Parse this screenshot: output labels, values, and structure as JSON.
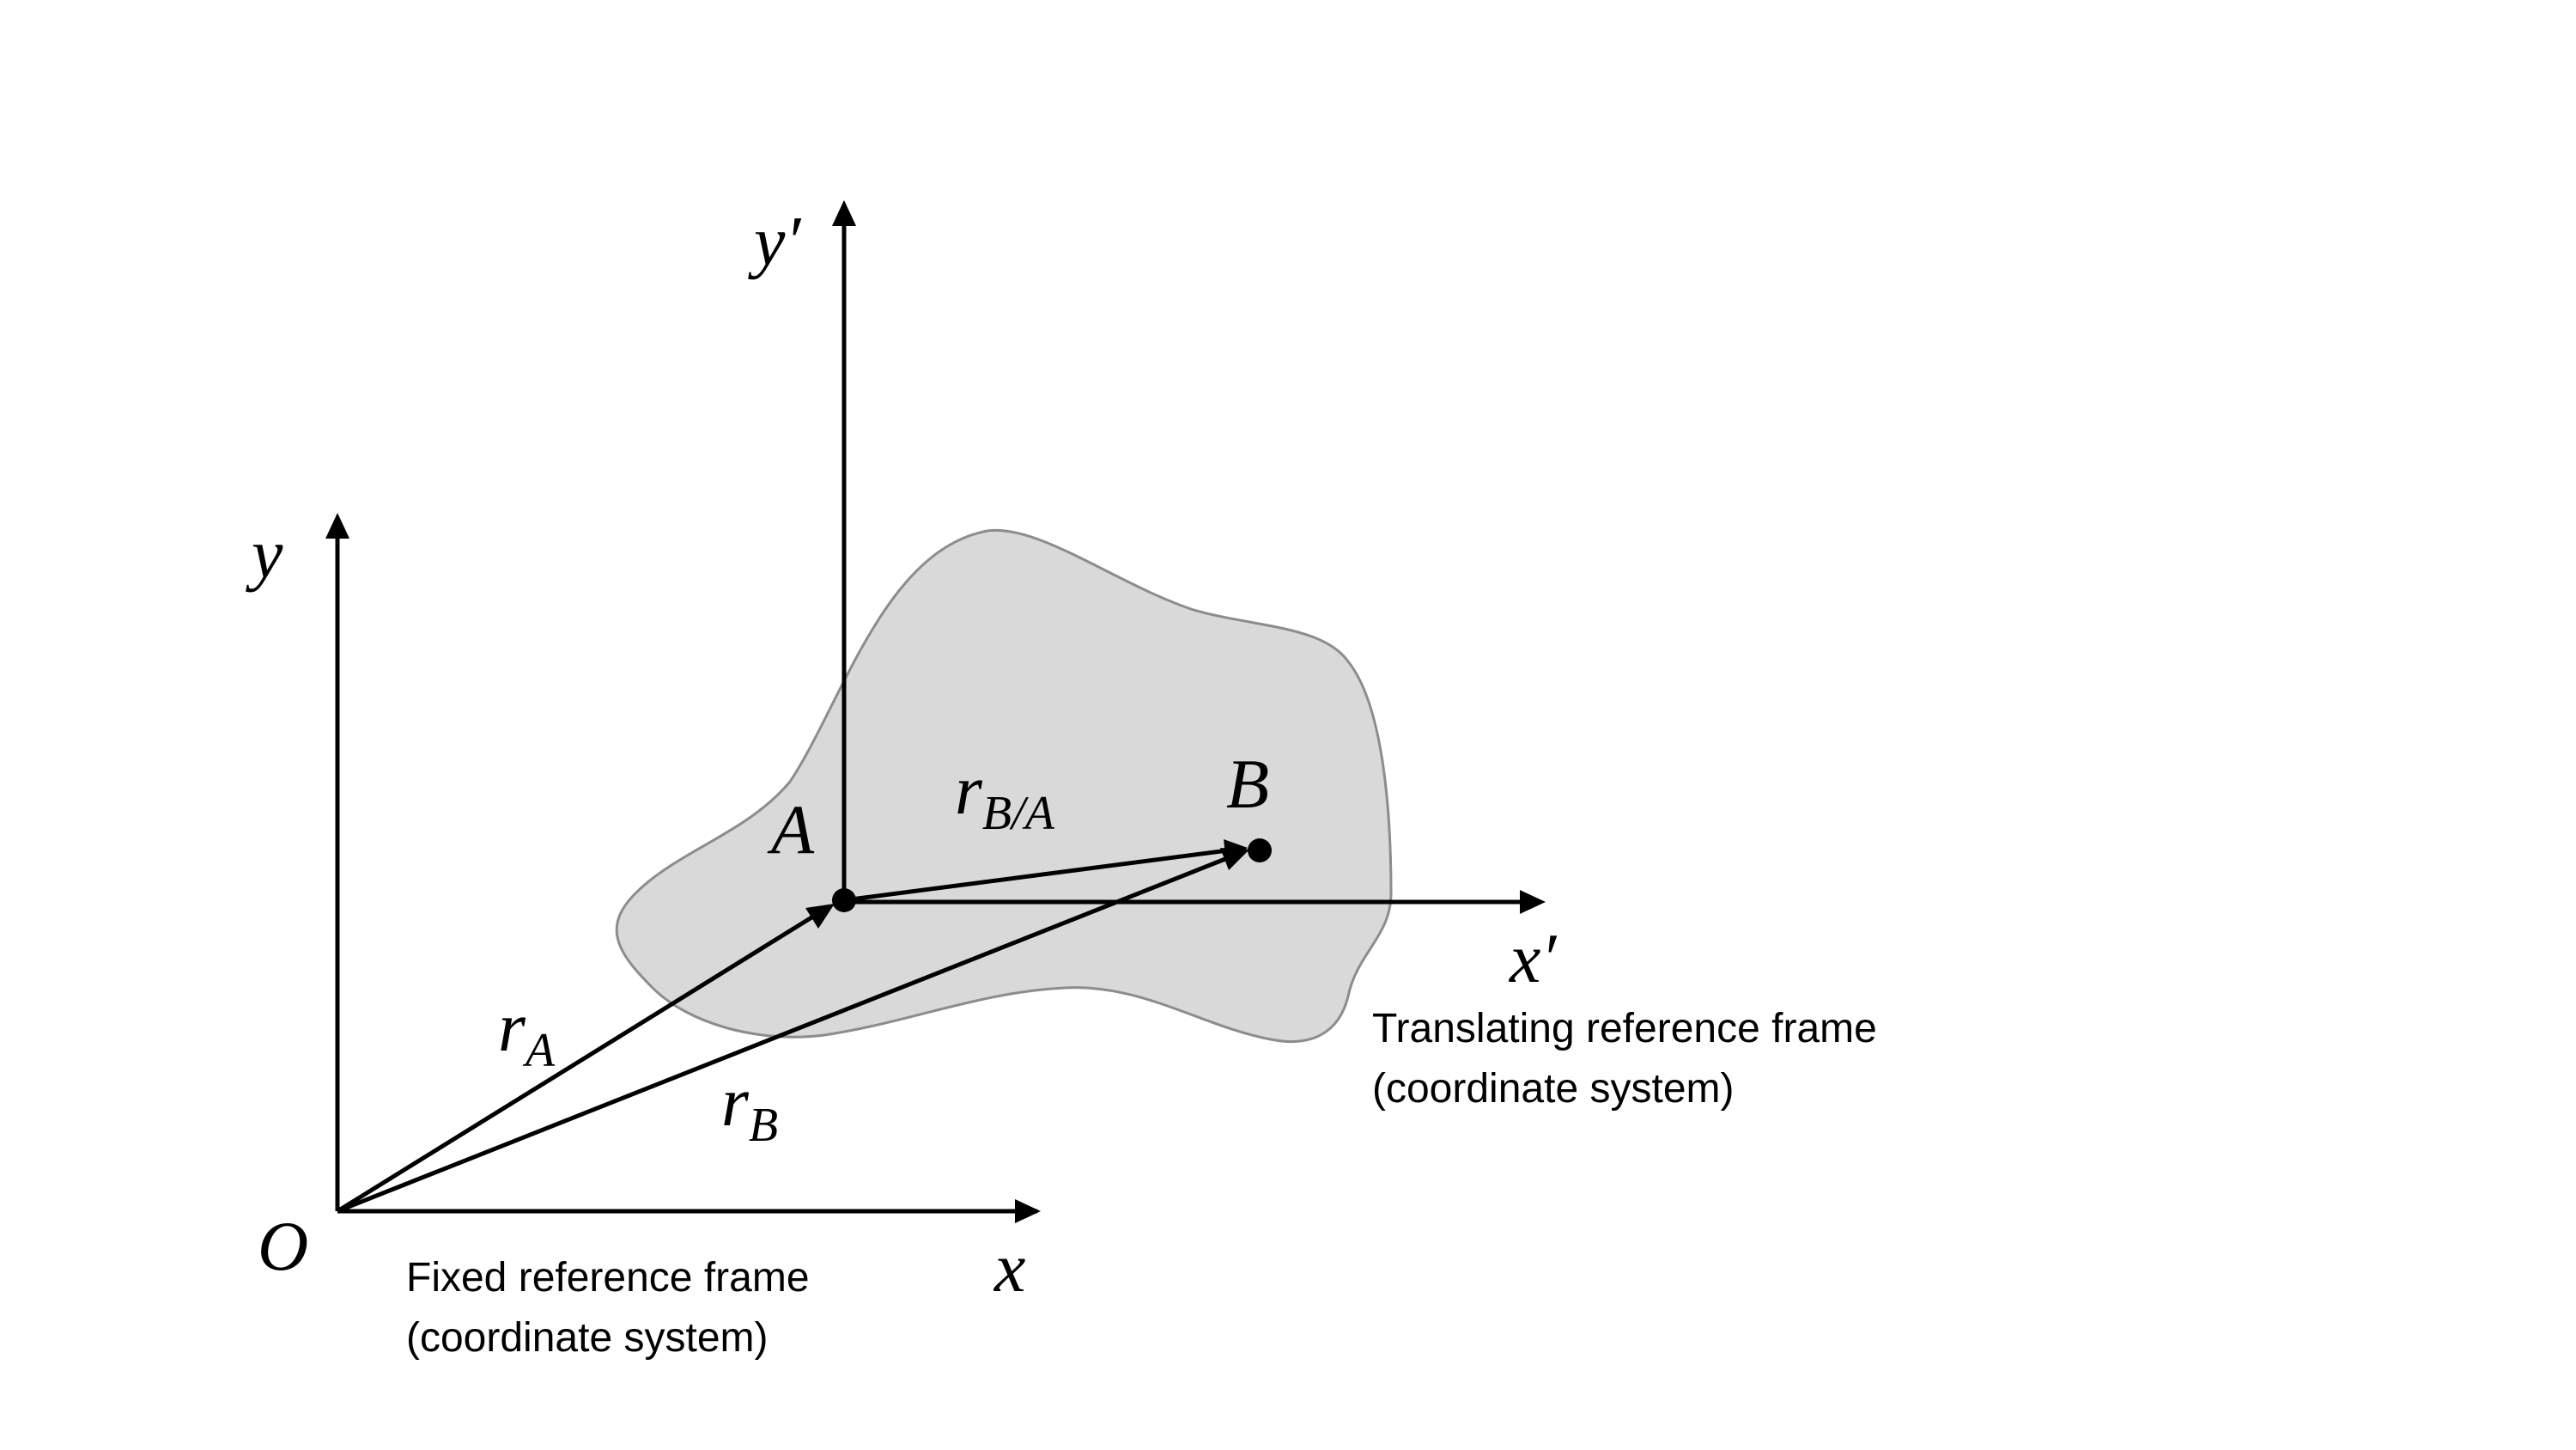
{
  "labels": {
    "origin": "O",
    "fixed_x": "x",
    "fixed_y": "y",
    "moving_x": "x′",
    "moving_y": "y′",
    "point_a": "A",
    "point_b": "B",
    "r_a_main": "r",
    "r_a_sub": "A",
    "r_b_main": "r",
    "r_b_sub": "B",
    "r_ba_main": "r",
    "r_ba_sub": "B/A"
  },
  "captions": {
    "fixed_line1": "Fixed reference frame",
    "fixed_line2": "(coordinate system)",
    "translating_line1": "Translating reference frame",
    "translating_line2": "(coordinate system)"
  },
  "colors": {
    "body_fill": "#d9d9d9",
    "body_outline": "#8c8c8c",
    "lines": "#000000"
  }
}
